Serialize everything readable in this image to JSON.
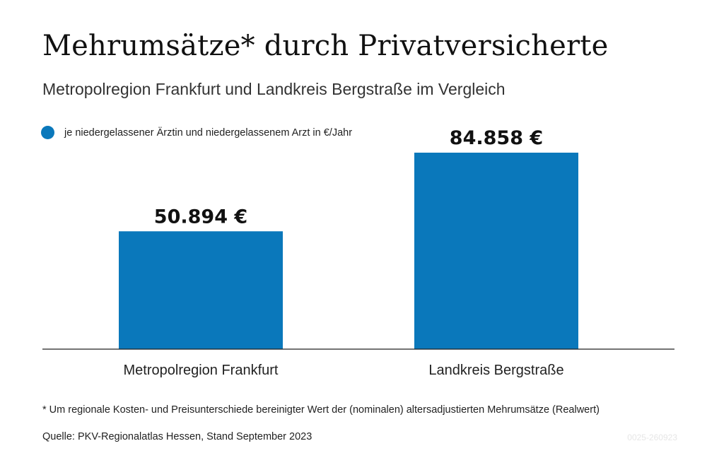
{
  "title": "Mehrumsätze* durch Privatversicherte",
  "subtitle": "Metropolregion Frankfurt und Landkreis Bergstraße im Vergleich",
  "legend": {
    "label": "je niedergelassener Ärztin und niedergelassenem Arzt in €/Jahr",
    "color": "#0a78bb"
  },
  "chart_data": {
    "type": "bar",
    "categories": [
      "Metropolregion Frankfurt",
      "Landkreis Bergstraße"
    ],
    "values": [
      50894,
      84858
    ],
    "value_labels": [
      "50.894 €",
      "84.858 €"
    ],
    "series": [
      {
        "name": "je niedergelassener Ärztin und niedergelassenem Arzt in €/Jahr",
        "values": [
          50894,
          84858
        ]
      }
    ],
    "ylim": [
      0,
      84858
    ],
    "grid": false,
    "bar_color": "#0a78bb",
    "legend_position": "top-left"
  },
  "footnote": "*  Um regionale Kosten- und Preisunterschiede bereinigter Wert der (nominalen) altersadjustierten Mehrumsätze (Realwert)",
  "source": "Quelle: PKV-Regionalatlas Hessen, Stand September 2023",
  "code": "0025-260923"
}
